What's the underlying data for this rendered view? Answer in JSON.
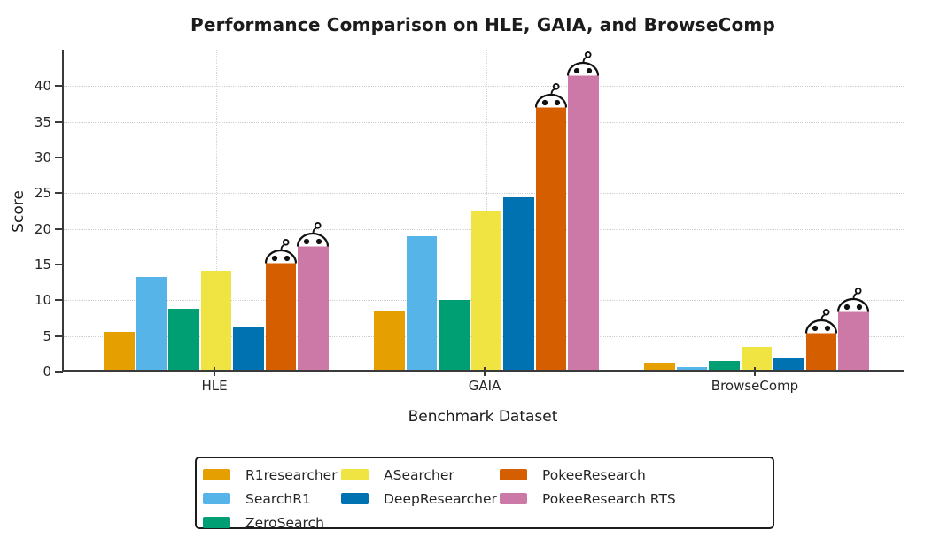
{
  "chart_data": {
    "type": "bar",
    "title": "Performance Comparison on HLE, GAIA, and BrowseComp",
    "xlabel": "Benchmark Dataset",
    "ylabel": "Score",
    "categories": [
      "HLE",
      "GAIA",
      "BrowseComp"
    ],
    "series": [
      {
        "name": "R1researcher",
        "color": "#E69F00",
        "values": [
          5.3,
          8.2,
          1.0
        ],
        "robot_marker": false
      },
      {
        "name": "SearchR1",
        "color": "#56B4E9",
        "values": [
          13.0,
          18.7,
          0.4
        ],
        "robot_marker": false
      },
      {
        "name": "ZeroSearch",
        "color": "#009E73",
        "values": [
          8.6,
          9.8,
          1.3
        ],
        "robot_marker": false
      },
      {
        "name": "ASearcher",
        "color": "#F0E442",
        "values": [
          13.9,
          22.2,
          3.2
        ],
        "robot_marker": false
      },
      {
        "name": "DeepResearcher",
        "color": "#0072B2",
        "values": [
          5.9,
          24.2,
          1.6
        ],
        "robot_marker": false
      },
      {
        "name": "PokeeResearch",
        "color": "#D55E00",
        "values": [
          15.3,
          37.0,
          5.4
        ],
        "robot_marker": true
      },
      {
        "name": "PokeeResearch RTS",
        "color": "#CC79A7",
        "values": [
          17.6,
          41.5,
          8.4
        ],
        "robot_marker": true
      }
    ],
    "yticks": [
      0,
      5,
      10,
      15,
      20,
      25,
      30,
      35,
      40
    ],
    "ylim": [
      0,
      45
    ],
    "grid": true,
    "legend_position": "bottom",
    "legend_columns": [
      [
        "R1researcher",
        "SearchR1",
        "ZeroSearch"
      ],
      [
        "ASearcher",
        "DeepResearcher"
      ],
      [
        "PokeeResearch",
        "PokeeResearch RTS"
      ]
    ],
    "annotations": {
      "robot_icon_on": [
        "PokeeResearch",
        "PokeeResearch RTS"
      ]
    }
  }
}
